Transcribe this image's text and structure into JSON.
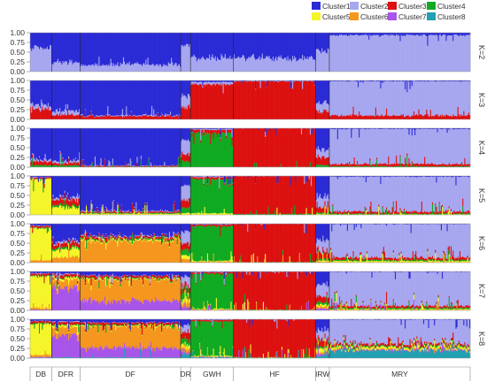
{
  "chart_data": {
    "type": "bar",
    "subtype": "stacked-admixture-structure-plot",
    "legend": {
      "placement": "top-right",
      "entries": [
        {
          "name": "Cluster1",
          "color": "#2b2bd6"
        },
        {
          "name": "Cluster2",
          "color": "#a7a7f0"
        },
        {
          "name": "Cluster3",
          "color": "#dd1111"
        },
        {
          "name": "Cluster4",
          "color": "#11aa22"
        },
        {
          "name": "Cluster5",
          "color": "#f5f52a"
        },
        {
          "name": "Cluster6",
          "color": "#f5961e"
        },
        {
          "name": "Cluster7",
          "color": "#a855ea"
        },
        {
          "name": "Cluster8",
          "color": "#20a0b0"
        }
      ]
    },
    "y_ticks": [
      "1.00",
      "0.75",
      "0.50",
      "0.25",
      "0.00"
    ],
    "ylim": [
      0,
      1
    ],
    "grid": false,
    "populations": [
      {
        "label": "DB",
        "share": 0.048
      },
      {
        "label": "DFR",
        "share": 0.065
      },
      {
        "label": "DF",
        "share": 0.229
      },
      {
        "label": "DR",
        "share": 0.022
      },
      {
        "label": "GWH",
        "share": 0.098
      },
      {
        "label": "HF",
        "share": 0.186
      },
      {
        "label": "IRW",
        "share": 0.032
      },
      {
        "label": "MRY",
        "share": 0.32
      }
    ],
    "panels": [
      {
        "k": "K=2",
        "mean_proportions": [
          {
            "DB": [
              0.4,
              0.6
            ],
            "DFR": [
              0.75,
              0.25
            ],
            "DF": [
              0.82,
              0.18
            ],
            "DR": [
              0.3,
              0.7
            ],
            "GWH": [
              0.65,
              0.35
            ],
            "HF": [
              0.65,
              0.35
            ],
            "IRW": [
              0.45,
              0.55
            ],
            "MRY": [
              0.06,
              0.94
            ]
          }
        ]
      },
      {
        "k": "K=3",
        "mean_proportions": [
          {
            "DB": [
              0.65,
              0.1,
              0.25
            ],
            "DFR": [
              0.78,
              0.1,
              0.12
            ],
            "DF": [
              0.9,
              0.02,
              0.08
            ],
            "DR": [
              0.4,
              0.3,
              0.3
            ],
            "GWH": [
              0.04,
              0.06,
              0.9
            ],
            "HF": [
              0.01,
              0.01,
              0.98
            ],
            "IRW": [
              0.6,
              0.2,
              0.2
            ],
            "MRY": [
              0.02,
              0.88,
              0.1
            ]
          }
        ]
      },
      {
        "k": "K=4",
        "mean_proportions": [
          {
            "DB": [
              0.8,
              0.05,
              0.1,
              0.05
            ],
            "DFR": [
              0.85,
              0.05,
              0.06,
              0.04
            ],
            "DF": [
              0.96,
              0.01,
              0.02,
              0.01
            ],
            "DR": [
              0.3,
              0.35,
              0.2,
              0.15
            ],
            "GWH": [
              0.02,
              0.02,
              0.08,
              0.88
            ],
            "HF": [
              0.0,
              0.0,
              1.0,
              0.0
            ],
            "IRW": [
              0.55,
              0.2,
              0.2,
              0.05
            ],
            "MRY": [
              0.02,
              0.9,
              0.06,
              0.02
            ]
          }
        ]
      },
      {
        "k": "K=5",
        "mean_proportions": [
          {
            "DB": [
              0.03,
              0.01,
              0.03,
              0.01,
              0.92
            ],
            "DFR": [
              0.55,
              0.05,
              0.15,
              0.05,
              0.2
            ],
            "DF": [
              0.9,
              0.02,
              0.03,
              0.02,
              0.03
            ],
            "DR": [
              0.25,
              0.35,
              0.2,
              0.15,
              0.05
            ],
            "GWH": [
              0.01,
              0.02,
              0.05,
              0.88,
              0.04
            ],
            "HF": [
              0.0,
              0.0,
              0.98,
              0.02,
              0.0
            ],
            "IRW": [
              0.55,
              0.25,
              0.15,
              0.03,
              0.02
            ],
            "MRY": [
              0.02,
              0.9,
              0.05,
              0.02,
              0.01
            ]
          }
        ]
      },
      {
        "k": "K=6",
        "mean_proportions": [
          {
            "DB": [
              0.05,
              0.01,
              0.04,
              0.02,
              0.82,
              0.06
            ],
            "DFR": [
              0.45,
              0.05,
              0.1,
              0.05,
              0.2,
              0.15
            ],
            "DF": [
              0.3,
              0.02,
              0.05,
              0.03,
              0.03,
              0.57
            ],
            "DR": [
              0.2,
              0.3,
              0.15,
              0.15,
              0.1,
              0.1
            ],
            "GWH": [
              0.01,
              0.01,
              0.04,
              0.9,
              0.02,
              0.02
            ],
            "HF": [
              0.0,
              0.0,
              0.99,
              0.01,
              0.0,
              0.0
            ],
            "IRW": [
              0.45,
              0.3,
              0.15,
              0.05,
              0.03,
              0.02
            ],
            "MRY": [
              0.01,
              0.86,
              0.06,
              0.03,
              0.03,
              0.01
            ]
          }
        ]
      },
      {
        "k": "K=7",
        "mean_proportions": [
          {
            "DB": [
              0.04,
              0.01,
              0.04,
              0.02,
              0.83,
              0.04,
              0.02
            ],
            "DFR": [
              0.05,
              0.02,
              0.06,
              0.02,
              0.05,
              0.2,
              0.6
            ],
            "DF": [
              0.1,
              0.01,
              0.05,
              0.02,
              0.02,
              0.55,
              0.25
            ],
            "DR": [
              0.15,
              0.25,
              0.15,
              0.15,
              0.1,
              0.1,
              0.1
            ],
            "GWH": [
              0.01,
              0.01,
              0.04,
              0.9,
              0.02,
              0.01,
              0.01
            ],
            "HF": [
              0.0,
              0.0,
              0.99,
              0.01,
              0.0,
              0.0,
              0.0
            ],
            "IRW": [
              0.35,
              0.3,
              0.15,
              0.05,
              0.05,
              0.05,
              0.05
            ],
            "MRY": [
              0.01,
              0.88,
              0.05,
              0.03,
              0.02,
              0.01,
              0.0
            ]
          }
        ]
      },
      {
        "k": "K=8",
        "mean_proportions": [
          {
            "DB": [
              0.04,
              0.01,
              0.05,
              0.02,
              0.8,
              0.05,
              0.02,
              0.01
            ],
            "DFR": [
              0.05,
              0.02,
              0.06,
              0.02,
              0.05,
              0.2,
              0.58,
              0.02
            ],
            "DF": [
              0.08,
              0.01,
              0.05,
              0.02,
              0.02,
              0.55,
              0.25,
              0.02
            ],
            "DR": [
              0.15,
              0.2,
              0.15,
              0.15,
              0.1,
              0.1,
              0.05,
              0.1
            ],
            "GWH": [
              0.01,
              0.01,
              0.04,
              0.88,
              0.02,
              0.01,
              0.01,
              0.02
            ],
            "HF": [
              0.0,
              0.0,
              0.99,
              0.01,
              0.0,
              0.0,
              0.0,
              0.0
            ],
            "IRW": [
              0.3,
              0.25,
              0.15,
              0.05,
              0.1,
              0.05,
              0.05,
              0.05
            ],
            "MRY": [
              0.01,
              0.62,
              0.05,
              0.03,
              0.05,
              0.02,
              0.02,
              0.2
            ]
          }
        ]
      }
    ]
  }
}
